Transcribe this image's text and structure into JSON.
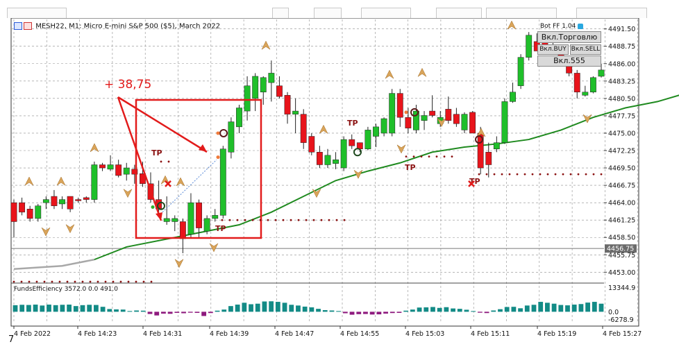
{
  "window": {
    "symbol_title": "MESH22, M1:  Micro E-mini S&P 500 ($5), March 2022",
    "bot_label": "Bot FF 1.04"
  },
  "panel": {
    "trade_toggle": "Вкл.Торговлю",
    "buy_toggle": "Вкл.BUY",
    "sell_toggle": "Вкл.SELL",
    "mode_toggle": "Вкл.555"
  },
  "annotation": {
    "profit_text": "+ 38,75"
  },
  "tp_label": "TP",
  "indicator": {
    "title": "FundsEfficiency 3572.0 0.0 491.0",
    "axis_labels": [
      "13344.9",
      "0.0",
      "-6278.9"
    ]
  },
  "current_price_label": "4456.75",
  "figure_label": "7",
  "colors": {
    "bull": "#1fbf2a",
    "bear": "#e8141b",
    "ma": "#1f8a1f",
    "hist_pos": "#138b86",
    "hist_neg": "#8e1a7e",
    "annotation": "#e21b1b",
    "tp": "#8b1212"
  },
  "chart_data": {
    "type": "candlestick",
    "price_axis": [
      "4491.50",
      "4488.75",
      "4486.00",
      "4483.25",
      "4480.50",
      "4477.75",
      "4475.00",
      "4472.25",
      "4469.50",
      "4466.75",
      "4464.00",
      "4461.25",
      "4458.50",
      "4455.75",
      "4453.00"
    ],
    "time_axis": [
      "4 Feb 2022",
      "4 Feb 14:23",
      "4 Feb 14:31",
      "4 Feb 14:39",
      "4 Feb 14:47",
      "4 Feb 14:55",
      "4 Feb 15:03",
      "4 Feb 15:11",
      "4 Feb 15:19",
      "4 Feb 15:27"
    ],
    "ylim": [
      4451.5,
      4493.0
    ],
    "candles": [
      [
        4464.0,
        4464.5,
        4458.5,
        4461.0
      ],
      [
        4464.0,
        4464.8,
        4462.0,
        4462.5
      ],
      [
        4463.0,
        4463.5,
        4461.0,
        4461.5
      ],
      [
        4461.5,
        4463.8,
        4461.0,
        4463.5
      ],
      [
        4464.0,
        4465.0,
        4463.0,
        4464.5
      ],
      [
        4465.0,
        4466.0,
        4463.0,
        4463.5
      ],
      [
        4463.8,
        4465.0,
        4463.0,
        4464.5
      ],
      [
        4465.0,
        4465.0,
        4462.5,
        4463.0
      ],
      [
        4464.5,
        4464.8,
        4464.0,
        4464.3
      ],
      [
        4464.8,
        4465.0,
        4464.0,
        4464.5
      ],
      [
        4464.5,
        4470.5,
        4464.0,
        4470.0
      ],
      [
        4470.0,
        4470.3,
        4469.0,
        4469.5
      ],
      [
        4469.3,
        4471.5,
        4469.0,
        4470.0
      ],
      [
        4470.0,
        4470.8,
        4468.0,
        4468.3
      ],
      [
        4468.5,
        4470.3,
        4467.5,
        4469.5
      ],
      [
        4469.3,
        4470.0,
        4467.0,
        4468.5
      ],
      [
        4468.6,
        4470.5,
        4466.5,
        4467.0
      ],
      [
        4467.0,
        4468.8,
        4464.0,
        4464.5
      ],
      [
        4464.5,
        4467.5,
        4462.5,
        4463.0
      ],
      [
        4461.0,
        4465.0,
        4460.5,
        4461.5
      ],
      [
        4461.0,
        4462.0,
        4459.5,
        4461.5
      ],
      [
        4461.0,
        4461.5,
        4456.0,
        4458.3
      ],
      [
        4459.0,
        4465.5,
        4458.3,
        4464.0
      ],
      [
        4464.0,
        4464.5,
        4458.5,
        4460.0
      ],
      [
        4459.5,
        4462.0,
        4459.0,
        4461.5
      ],
      [
        4461.5,
        4463.0,
        4461.0,
        4462.0
      ],
      [
        4462.0,
        4473.0,
        4461.5,
        4472.5
      ],
      [
        4472.0,
        4477.5,
        4471.0,
        4476.8
      ],
      [
        4476.0,
        4479.5,
        4475.0,
        4479.0
      ],
      [
        4478.5,
        4484.0,
        4477.0,
        4482.5
      ],
      [
        4480.5,
        4484.5,
        4478.5,
        4484.0
      ],
      [
        4481.5,
        4484.0,
        4479.5,
        4483.8
      ],
      [
        4483.0,
        4486.5,
        4480.0,
        4484.5
      ],
      [
        4482.5,
        4484.0,
        4480.5,
        4480.8
      ],
      [
        4481.0,
        4481.5,
        4476.5,
        4478.0
      ],
      [
        4478.0,
        4480.5,
        4475.0,
        4478.5
      ],
      [
        4478.0,
        4478.8,
        4472.5,
        4473.5
      ],
      [
        4474.5,
        4475.0,
        4471.5,
        4472.0
      ],
      [
        4472.0,
        4473.0,
        4469.5,
        4470.0
      ],
      [
        4470.0,
        4472.5,
        4469.5,
        4471.5
      ],
      [
        4470.2,
        4472.0,
        4469.3,
        4470.8
      ],
      [
        4469.5,
        4474.5,
        4469.0,
        4474.0
      ],
      [
        4474.0,
        4474.8,
        4472.5,
        4473.0
      ],
      [
        4473.5,
        4473.5,
        4472.0,
        4472.5
      ],
      [
        4472.5,
        4476.0,
        4472.3,
        4475.5
      ],
      [
        4474.5,
        4476.5,
        4472.8,
        4476.0
      ],
      [
        4475.0,
        4477.5,
        4474.5,
        4477.3
      ],
      [
        4475.0,
        4482.0,
        4474.5,
        4481.3
      ],
      [
        4481.3,
        4482.0,
        4476.0,
        4477.5
      ],
      [
        4477.5,
        4479.0,
        4475.0,
        4475.8
      ],
      [
        4475.5,
        4479.5,
        4475.0,
        4478.5
      ],
      [
        4477.0,
        4478.5,
        4475.5,
        4477.8
      ],
      [
        4478.5,
        4481.0,
        4477.5,
        4477.8
      ],
      [
        4476.5,
        4478.5,
        4476.0,
        4477.5
      ],
      [
        4478.8,
        4480.8,
        4476.5,
        4477.0
      ],
      [
        4478.0,
        4479.0,
        4476.0,
        4476.5
      ],
      [
        4475.5,
        4478.3,
        4475.0,
        4478.0
      ],
      [
        4478.3,
        4478.5,
        4475.0,
        4475.0
      ],
      [
        4475.0,
        4476.0,
        4468.5,
        4469.5
      ],
      [
        4472.0,
        4473.5,
        4468.0,
        4470.0
      ],
      [
        4472.5,
        4474.5,
        4472.0,
        4473.5
      ],
      [
        4473.5,
        4480.5,
        4473.3,
        4480.0
      ],
      [
        4480.0,
        4483.0,
        4479.8,
        4481.5
      ],
      [
        4482.5,
        4487.5,
        4482.0,
        4487.0
      ],
      [
        4487.0,
        4491.0,
        4486.5,
        4490.5
      ],
      [
        4489.5,
        4490.8,
        4488.0,
        4488.0
      ],
      [
        4490.0,
        4490.5,
        4488.5,
        4489.0
      ],
      [
        4489.0,
        4489.5,
        4487.5,
        4488.5
      ],
      [
        4488.0,
        4488.5,
        4486.0,
        4486.5
      ],
      [
        4486.5,
        4487.0,
        4484.0,
        4484.5
      ],
      [
        4484.5,
        4485.0,
        4480.5,
        4481.5
      ],
      [
        4481.0,
        4482.5,
        4480.8,
        4481.5
      ],
      [
        4481.5,
        4484.0,
        4481.3,
        4483.8
      ],
      [
        4484.0,
        4486.0,
        4483.8,
        4485.0
      ]
    ],
    "ma": [
      [
        0,
        4453.5
      ],
      [
        6,
        4454.0
      ],
      [
        10,
        4455.0
      ],
      [
        14,
        4457.0
      ],
      [
        20,
        4458.5
      ],
      [
        24,
        4459.5
      ],
      [
        28,
        4460.5
      ],
      [
        32,
        4462.5
      ],
      [
        36,
        4465.0
      ],
      [
        40,
        4467.5
      ],
      [
        44,
        4469.0
      ],
      [
        48,
        4470.3
      ],
      [
        52,
        4472.0
      ],
      [
        56,
        4472.8
      ],
      [
        60,
        4473.3
      ],
      [
        64,
        4474.0
      ],
      [
        68,
        4475.5
      ],
      [
        72,
        4477.5
      ],
      [
        76,
        4479.0
      ],
      [
        80,
        4480.0
      ],
      [
        84,
        4481.5
      ],
      [
        88,
        4482.5
      ],
      [
        92,
        4483.3
      ]
    ],
    "histogram": [
      3572,
      3800,
      3700,
      3900,
      3400,
      3900,
      3600,
      3800,
      3900,
      3100,
      3600,
      3800,
      3700,
      2700,
      1500,
      1300,
      1200,
      400,
      700,
      600,
      -1200,
      -2000,
      -1000,
      -1100,
      -600,
      -800,
      -500,
      -600,
      -2300,
      -700,
      600,
      1200,
      3100,
      3900,
      4900,
      4100,
      4400,
      5600,
      5700,
      5400,
      4900,
      3800,
      3400,
      2800,
      2400,
      1600,
      900,
      700,
      400,
      -800,
      -1600,
      -1300,
      -1200,
      -1500,
      -1400,
      -1000,
      -700,
      -600,
      600,
      1200,
      2300,
      2400,
      2600,
      2100,
      2500,
      1800,
      1600,
      1100,
      400,
      -500,
      -700,
      700,
      1400,
      2600,
      2700,
      1900,
      3400,
      3800,
      5400,
      4900,
      4400,
      3700,
      3500,
      3900,
      4200,
      5000,
      5400,
      4400
    ],
    "hist_ylim": [
      -6278.9,
      13344.9
    ]
  }
}
